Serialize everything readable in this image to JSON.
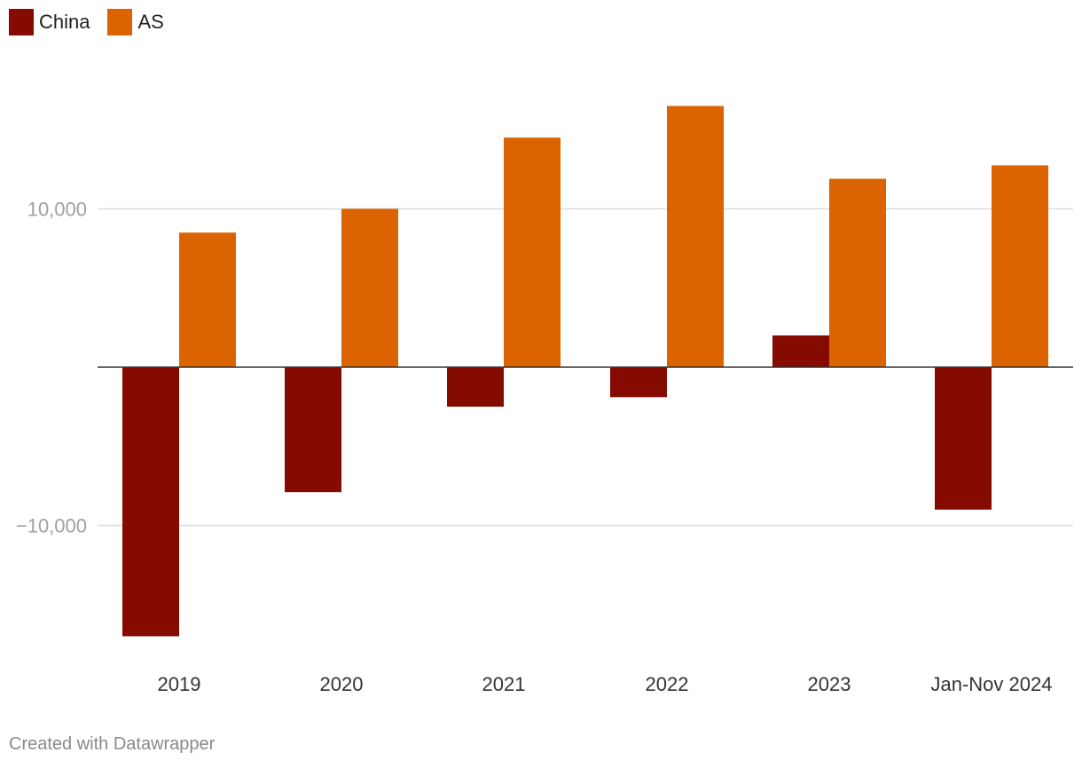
{
  "chart_data": {
    "type": "bar",
    "title": "",
    "xlabel": "",
    "ylabel": "",
    "categories": [
      "2019",
      "2020",
      "2021",
      "2022",
      "2023",
      "Jan-Nov 2024"
    ],
    "series": [
      {
        "name": "China",
        "color": "#850b00",
        "values": [
          -17000,
          -7900,
          -2500,
          -1900,
          2000,
          -9000
        ]
      },
      {
        "name": "AS",
        "color": "#db6300",
        "values": [
          8500,
          10000,
          14500,
          16500,
          11900,
          12750
        ]
      }
    ],
    "ylim": [
      -20000,
      20000
    ],
    "yticks": [
      10000,
      -10000
    ],
    "ytick_labels": [
      "10,000",
      "−10,000"
    ],
    "grid": true
  },
  "footer": {
    "credit": "Created with Datawrapper"
  }
}
